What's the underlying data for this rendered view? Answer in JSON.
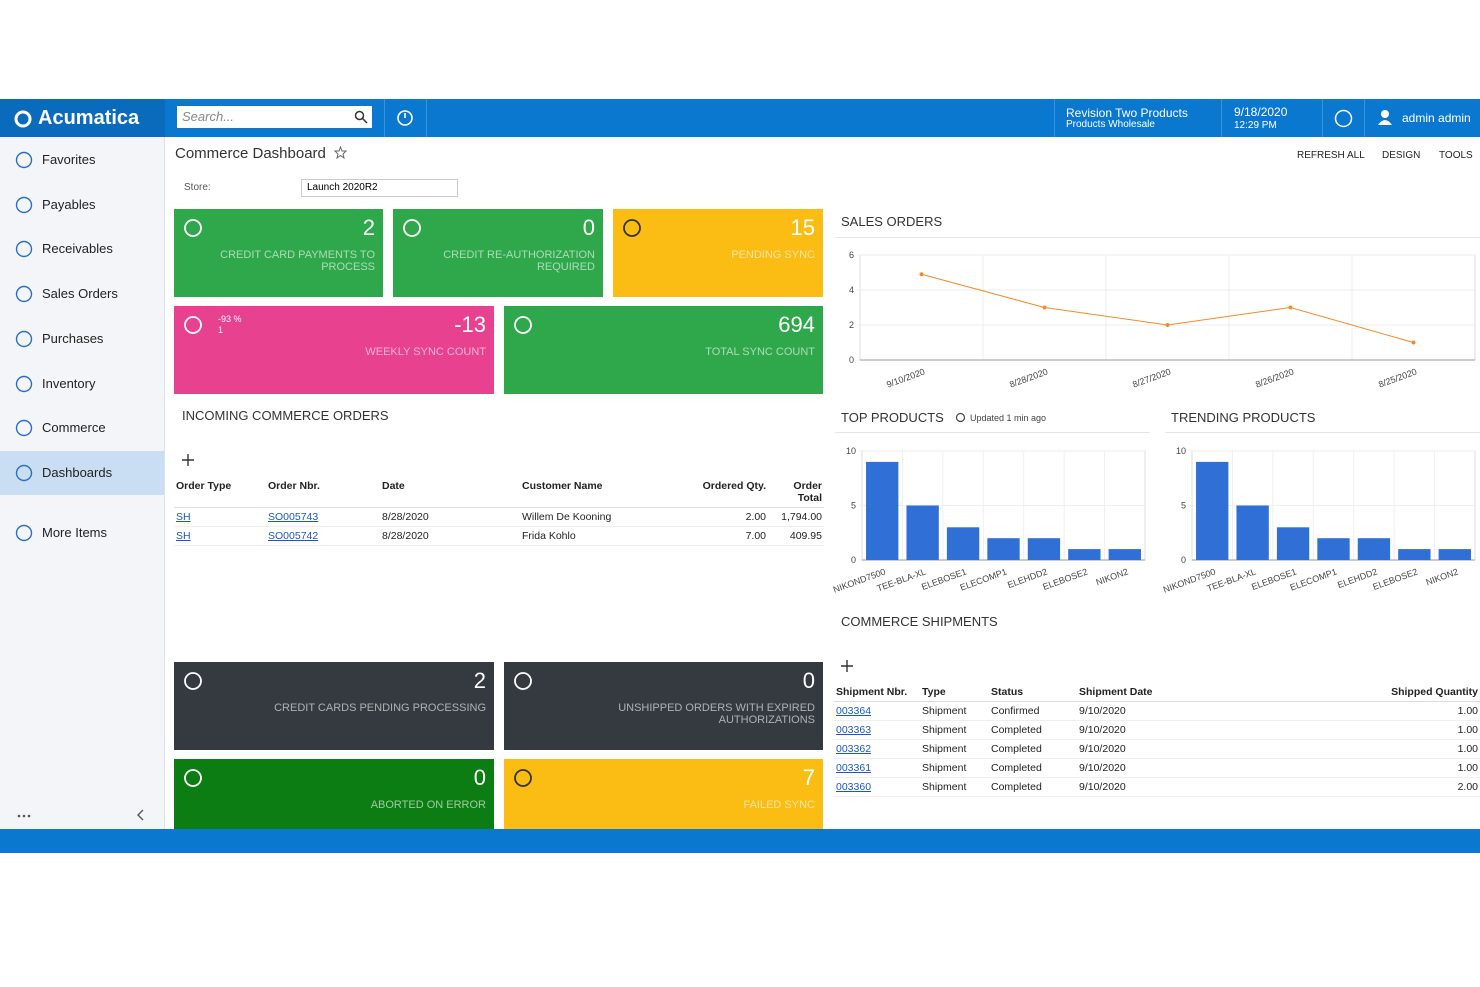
{
  "topbar": {
    "logo": "Acumatica",
    "search_placeholder": "Search...",
    "company": "Revision Two Products",
    "branch": "Products Wholesale",
    "date": "9/18/2020",
    "time": "12:29 PM",
    "user": "admin admin"
  },
  "sidebar": {
    "items": [
      "Favorites",
      "Payables",
      "Receivables",
      "Sales Orders",
      "Purchases",
      "Inventory",
      "Commerce",
      "Dashboards",
      "More Items"
    ],
    "active": "Dashboards"
  },
  "header": {
    "title": "Commerce Dashboard",
    "actions": [
      "REFRESH ALL",
      "DESIGN",
      "TOOLS"
    ],
    "store_label": "Store:",
    "store_value": "Launch 2020R2"
  },
  "tiles": [
    {
      "value": 2,
      "label": "CREDIT CARD PAYMENTS TO PROCESS",
      "color": "#2ea84a"
    },
    {
      "value": 0,
      "label": "CREDIT RE-AUTHORIZATION REQUIRED",
      "color": "#2ea84a"
    },
    {
      "value": 15,
      "label": "PENDING SYNC",
      "color": "#fbbd13"
    },
    {
      "value": -13,
      "label": "WEEKLY SYNC COUNT",
      "color": "#e8418f",
      "delta": "-93 %",
      "delta_sub": "1"
    },
    {
      "value": 694,
      "label": "TOTAL SYNC COUNT",
      "color": "#2ea84a"
    },
    {
      "value": 2,
      "label": "CREDIT CARDS PENDING PROCESSING",
      "color": "#343a40"
    },
    {
      "value": 0,
      "label": "UNSHIPPED ORDERS WITH EXPIRED AUTHORIZATIONS",
      "color": "#343a40"
    },
    {
      "value": 0,
      "label": "ABORTED ON ERROR",
      "color": "#0b7d12"
    },
    {
      "value": 7,
      "label": "FAILED SYNC",
      "color": "#fbbd13"
    }
  ],
  "incoming_orders": {
    "title": "INCOMING COMMERCE ORDERS",
    "columns": [
      "Order Type",
      "Order Nbr.",
      "Date",
      "Customer Name",
      "Ordered Qty.",
      "Order Total"
    ],
    "rows": [
      [
        "SH",
        "SO005743",
        "8/28/2020",
        "Willem De Kooning",
        "2.00",
        "1,794.00"
      ],
      [
        "SH",
        "SO005742",
        "8/28/2020",
        "Frida Kohlo",
        "7.00",
        "409.95"
      ]
    ]
  },
  "sales_orders": {
    "type": "line",
    "title": "SALES ORDERS",
    "categories": [
      "9/10/2020",
      "8/28/2020",
      "8/27/2020",
      "8/26/2020",
      "8/25/2020"
    ],
    "values": [
      4.9,
      3,
      2,
      3,
      1
    ],
    "ylim": [
      0,
      6
    ],
    "yticks": [
      0,
      2,
      4,
      6
    ],
    "color": "#f28c28"
  },
  "top_products": {
    "type": "bar",
    "title": "TOP PRODUCTS",
    "note": "Updated 1 min ago",
    "categories": [
      "NIKOND7500",
      "TEE-BLA-XL",
      "ELEBOSE1",
      "ELECOMP1",
      "ELEHDD2",
      "ELEBOSE2",
      "NIKON2"
    ],
    "values": [
      9,
      5,
      3,
      2,
      2,
      1,
      1
    ],
    "ylim": [
      0,
      10
    ],
    "yticks": [
      0,
      5,
      10
    ],
    "color": "#2f6fd6"
  },
  "trending_products": {
    "type": "bar",
    "title": "TRENDING PRODUCTS",
    "categories": [
      "NIKOND7500",
      "TEE-BLA-XL",
      "ELEBOSE1",
      "ELECOMP1",
      "ELEHDD2",
      "ELEBOSE2",
      "NIKON2"
    ],
    "values": [
      9,
      5,
      3,
      2,
      2,
      1,
      1
    ],
    "ylim": [
      0,
      10
    ],
    "yticks": [
      0,
      5,
      10
    ],
    "color": "#2f6fd6"
  },
  "shipments": {
    "title": "COMMERCE SHIPMENTS",
    "columns": [
      "Shipment Nbr.",
      "Type",
      "Status",
      "Shipment Date",
      "Shipped Quantity"
    ],
    "rows": [
      [
        "003364",
        "Shipment",
        "Confirmed",
        "9/10/2020",
        "1.00"
      ],
      [
        "003363",
        "Shipment",
        "Completed",
        "9/10/2020",
        "1.00"
      ],
      [
        "003362",
        "Shipment",
        "Completed",
        "9/10/2020",
        "1.00"
      ],
      [
        "003361",
        "Shipment",
        "Completed",
        "9/10/2020",
        "1.00"
      ],
      [
        "003360",
        "Shipment",
        "Completed",
        "9/10/2020",
        "2.00"
      ]
    ]
  }
}
